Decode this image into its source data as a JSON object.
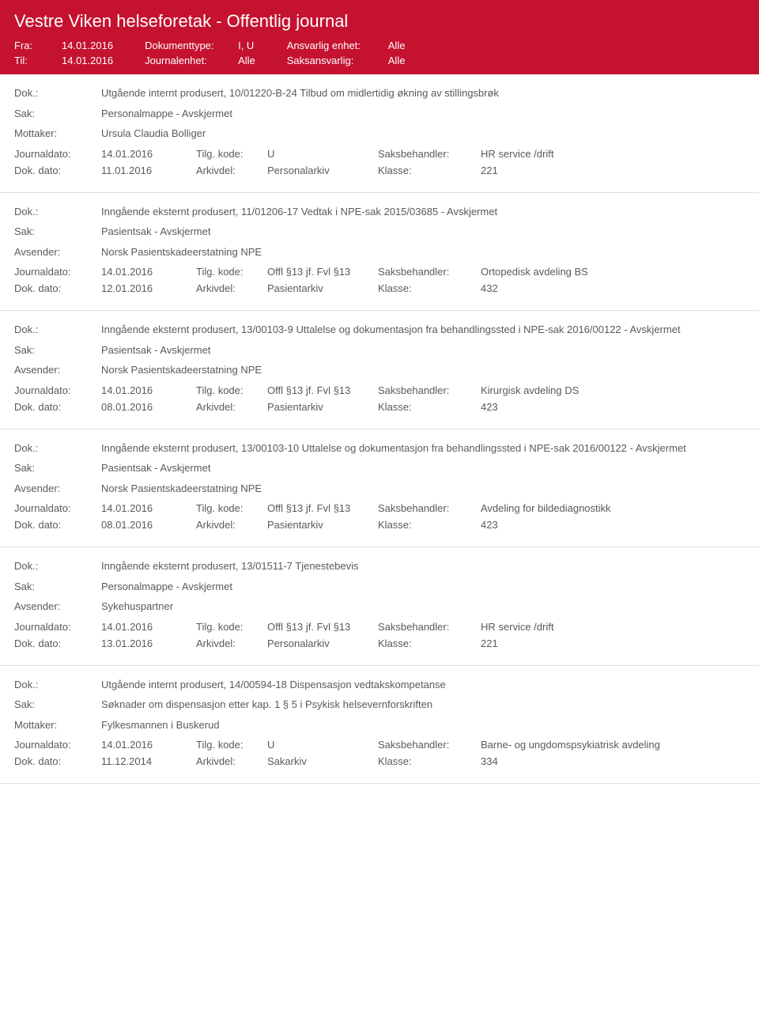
{
  "header": {
    "title": "Vestre Viken helseforetak - Offentlig journal",
    "fra_label": "Fra:",
    "fra_value": "14.01.2016",
    "til_label": "Til:",
    "til_value": "14.01.2016",
    "doktype_label": "Dokumenttype:",
    "doktype_value": "I, U",
    "journalenhet_label": "Journalenhet:",
    "journalenhet_value": "Alle",
    "ansvarlig_label": "Ansvarlig enhet:",
    "ansvarlig_value": "Alle",
    "saksansvarlig_label": "Saksansvarlig:",
    "saksansvarlig_value": "Alle"
  },
  "labels": {
    "dok": "Dok.:",
    "sak": "Sak:",
    "mottaker": "Mottaker:",
    "avsender": "Avsender:",
    "journaldato": "Journaldato:",
    "dokdato": "Dok. dato:",
    "tilgkode": "Tilg. kode:",
    "arkivdel": "Arkivdel:",
    "saksbehandler": "Saksbehandler:",
    "klasse": "Klasse:"
  },
  "entries": [
    {
      "dok": "Utgående internt produsert, 10/01220-B-24 Tilbud om midlertidig økning av stillingsbrøk",
      "sak": "Personalmappe - Avskjermet",
      "party_label": "Mottaker:",
      "party": "Ursula Claudia Bolliger",
      "journaldato": "14.01.2016",
      "tilgkode": "U",
      "saksbehandler": "HR service /drift",
      "dokdato": "11.01.2016",
      "arkivdel": "Personalarkiv",
      "klasse": "221"
    },
    {
      "dok": "Inngående eksternt produsert, 11/01206-17 Vedtak i NPE-sak 2015/03685 - Avskjermet",
      "sak": "Pasientsak - Avskjermet",
      "party_label": "Avsender:",
      "party": "Norsk Pasientskadeerstatning NPE",
      "journaldato": "14.01.2016",
      "tilgkode": "Offl §13 jf. Fvl §13",
      "saksbehandler": "Ortopedisk avdeling BS",
      "dokdato": "12.01.2016",
      "arkivdel": "Pasientarkiv",
      "klasse": "432"
    },
    {
      "dok": "Inngående eksternt produsert, 13/00103-9 Uttalelse og dokumentasjon fra behandlingssted i NPE-sak 2016/00122 - Avskjermet",
      "sak": "Pasientsak - Avskjermet",
      "party_label": "Avsender:",
      "party": "Norsk Pasientskadeerstatning NPE",
      "journaldato": "14.01.2016",
      "tilgkode": "Offl §13 jf. Fvl §13",
      "saksbehandler": "Kirurgisk avdeling DS",
      "dokdato": "08.01.2016",
      "arkivdel": "Pasientarkiv",
      "klasse": "423"
    },
    {
      "dok": "Inngående eksternt produsert, 13/00103-10 Uttalelse og dokumentasjon fra behandlingssted i NPE-sak 2016/00122 - Avskjermet",
      "sak": "Pasientsak - Avskjermet",
      "party_label": "Avsender:",
      "party": "Norsk Pasientskadeerstatning NPE",
      "journaldato": "14.01.2016",
      "tilgkode": "Offl §13 jf. Fvl §13",
      "saksbehandler": "Avdeling for bildediagnostikk",
      "dokdato": "08.01.2016",
      "arkivdel": "Pasientarkiv",
      "klasse": "423"
    },
    {
      "dok": "Inngående eksternt produsert, 13/01511-7 Tjenestebevis",
      "sak": "Personalmappe - Avskjermet",
      "party_label": "Avsender:",
      "party": "Sykehuspartner",
      "journaldato": "14.01.2016",
      "tilgkode": "Offl §13 jf. Fvl §13",
      "saksbehandler": "HR service /drift",
      "dokdato": "13.01.2016",
      "arkivdel": "Personalarkiv",
      "klasse": "221"
    },
    {
      "dok": "Utgående internt produsert, 14/00594-18 Dispensasjon vedtakskompetanse",
      "sak": "Søknader om dispensasjon etter kap. 1 § 5 i Psykisk helsevernforskriften",
      "party_label": "Mottaker:",
      "party": "Fylkesmannen i Buskerud",
      "journaldato": "14.01.2016",
      "tilgkode": "U",
      "saksbehandler": "Barne- og ungdomspsykiatrisk avdeling",
      "dokdato": "11.12.2014",
      "arkivdel": "Sakarkiv",
      "klasse": "334"
    }
  ]
}
